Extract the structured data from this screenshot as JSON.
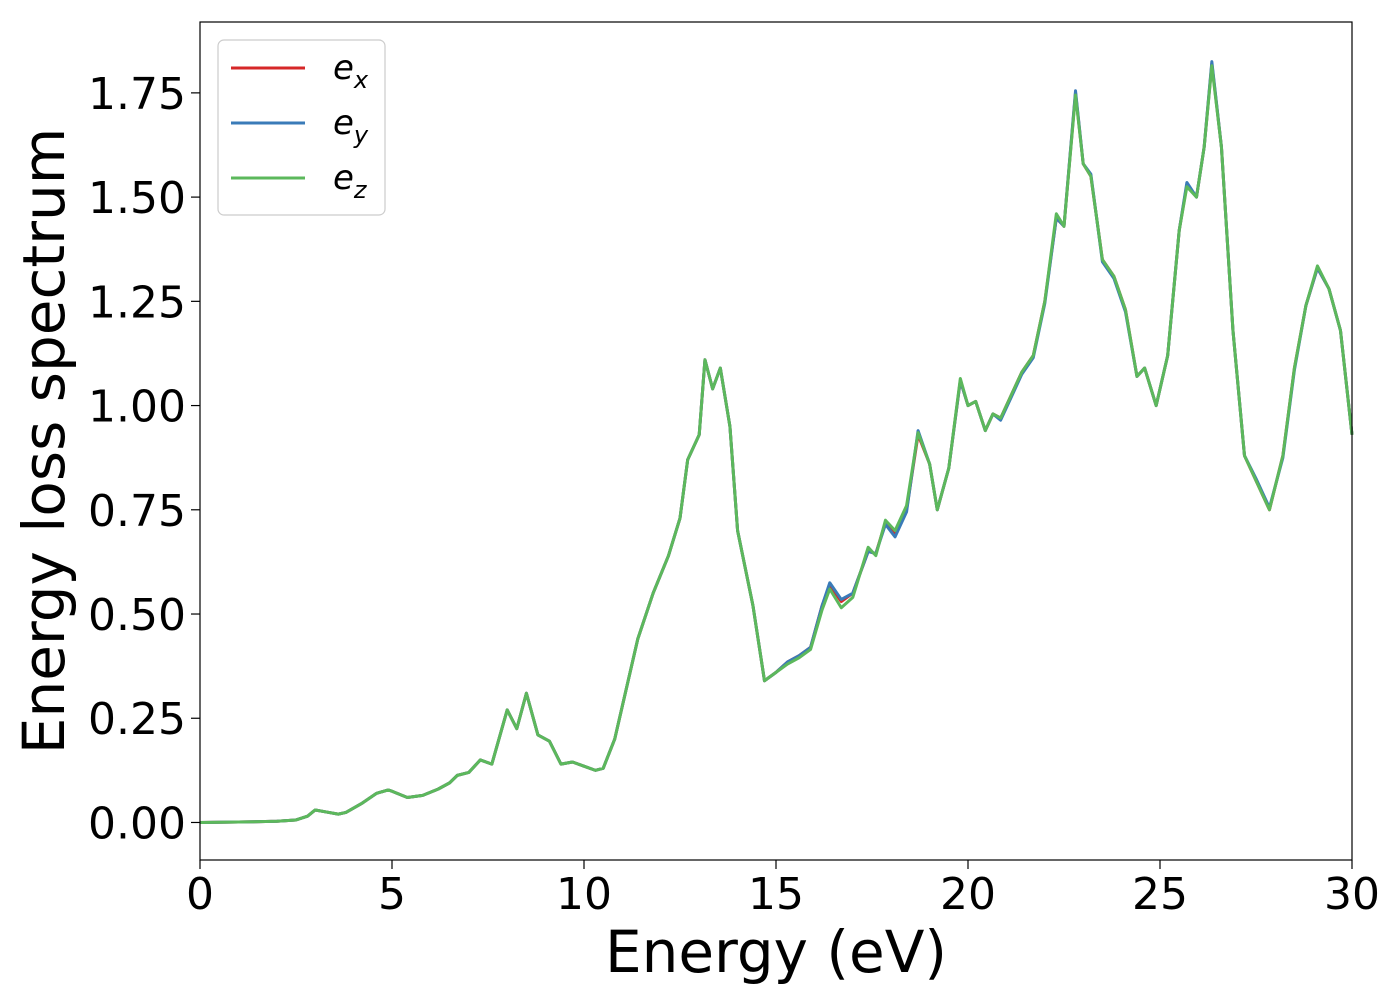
{
  "chart_data": {
    "type": "line",
    "title": "",
    "xlabel": "Energy (eV)",
    "ylabel": "Energy loss spectrum",
    "xlim": [
      0,
      30
    ],
    "ylim": [
      -0.09,
      1.92
    ],
    "xticks": [
      0,
      5,
      10,
      15,
      20,
      25,
      30
    ],
    "yticks": [
      0.0,
      0.25,
      0.5,
      0.75,
      1.0,
      1.25,
      1.5,
      1.75
    ],
    "xtick_labels": [
      "0",
      "5",
      "10",
      "15",
      "20",
      "25",
      "30"
    ],
    "ytick_labels": [
      "0.00",
      "0.25",
      "0.50",
      "0.75",
      "1.00",
      "1.25",
      "1.50",
      "1.75"
    ],
    "grid": false,
    "legend_position": "top-left",
    "colors": {
      "e_x": "#d62728",
      "e_y": "#3a7bb8",
      "e_z": "#5cb85c"
    },
    "x": [
      0,
      1,
      2,
      2.5,
      2.8,
      3.0,
      3.3,
      3.6,
      3.8,
      4.2,
      4.6,
      4.9,
      5.0,
      5.4,
      5.8,
      6.2,
      6.5,
      6.7,
      7.0,
      7.3,
      7.6,
      8.0,
      8.25,
      8.5,
      8.8,
      9.1,
      9.4,
      9.7,
      10.0,
      10.3,
      10.5,
      10.8,
      11.1,
      11.4,
      11.8,
      12.2,
      12.5,
      12.7,
      13.0,
      13.15,
      13.35,
      13.55,
      13.8,
      14.0,
      14.4,
      14.7,
      15.0,
      15.3,
      15.6,
      15.9,
      16.2,
      16.4,
      16.7,
      17.0,
      17.2,
      17.4,
      17.6,
      17.85,
      18.1,
      18.4,
      18.7,
      19.0,
      19.2,
      19.5,
      19.8,
      20.0,
      20.2,
      20.45,
      20.65,
      20.85,
      21.1,
      21.4,
      21.7,
      22.0,
      22.3,
      22.5,
      22.8,
      23.0,
      23.2,
      23.5,
      23.8,
      24.1,
      24.4,
      24.6,
      24.9,
      25.2,
      25.5,
      25.7,
      25.95,
      26.15,
      26.35,
      26.6,
      26.9,
      27.2,
      27.5,
      27.85,
      28.2,
      28.5,
      28.8,
      29.1,
      29.4,
      29.7,
      30.0
    ],
    "series": [
      {
        "name": "e_x",
        "values": [
          0.0,
          0.001,
          0.003,
          0.006,
          0.015,
          0.03,
          0.025,
          0.02,
          0.024,
          0.045,
          0.07,
          0.078,
          0.075,
          0.06,
          0.065,
          0.08,
          0.095,
          0.113,
          0.12,
          0.15,
          0.14,
          0.27,
          0.225,
          0.31,
          0.21,
          0.195,
          0.14,
          0.145,
          0.135,
          0.125,
          0.13,
          0.2,
          0.32,
          0.44,
          0.55,
          0.64,
          0.73,
          0.87,
          0.93,
          1.11,
          1.04,
          1.09,
          0.95,
          0.7,
          0.52,
          0.34,
          0.36,
          0.385,
          0.4,
          0.42,
          0.52,
          0.57,
          0.53,
          0.55,
          0.6,
          0.65,
          0.645,
          0.72,
          0.69,
          0.75,
          0.93,
          0.86,
          0.75,
          0.85,
          1.06,
          1.0,
          1.01,
          0.94,
          0.98,
          0.97,
          1.02,
          1.08,
          1.12,
          1.25,
          1.45,
          1.43,
          1.75,
          1.58,
          1.55,
          1.35,
          1.31,
          1.23,
          1.07,
          1.09,
          1.0,
          1.12,
          1.42,
          1.53,
          1.5,
          1.62,
          1.82,
          1.62,
          1.18,
          0.88,
          0.82,
          0.75,
          0.88,
          1.09,
          1.24,
          1.33,
          1.28,
          1.18,
          0.93
        ]
      },
      {
        "name": "e_y",
        "values": [
          0.0,
          0.001,
          0.003,
          0.006,
          0.015,
          0.03,
          0.025,
          0.02,
          0.024,
          0.045,
          0.07,
          0.078,
          0.075,
          0.06,
          0.065,
          0.08,
          0.095,
          0.113,
          0.12,
          0.15,
          0.14,
          0.27,
          0.225,
          0.31,
          0.21,
          0.195,
          0.14,
          0.145,
          0.135,
          0.125,
          0.13,
          0.2,
          0.32,
          0.44,
          0.55,
          0.64,
          0.73,
          0.87,
          0.93,
          1.11,
          1.04,
          1.09,
          0.95,
          0.7,
          0.52,
          0.34,
          0.36,
          0.385,
          0.4,
          0.42,
          0.52,
          0.575,
          0.535,
          0.55,
          0.6,
          0.65,
          0.645,
          0.715,
          0.685,
          0.745,
          0.94,
          0.86,
          0.75,
          0.85,
          1.06,
          1.0,
          1.01,
          0.94,
          0.98,
          0.965,
          1.015,
          1.075,
          1.115,
          1.245,
          1.45,
          1.43,
          1.755,
          1.58,
          1.555,
          1.345,
          1.305,
          1.225,
          1.07,
          1.09,
          1.0,
          1.12,
          1.42,
          1.535,
          1.5,
          1.62,
          1.825,
          1.62,
          1.18,
          0.88,
          0.825,
          0.755,
          0.875,
          1.085,
          1.24,
          1.33,
          1.28,
          1.18,
          0.93
        ]
      },
      {
        "name": "e_z",
        "values": [
          0.0,
          0.001,
          0.003,
          0.006,
          0.015,
          0.03,
          0.025,
          0.02,
          0.024,
          0.045,
          0.07,
          0.078,
          0.075,
          0.06,
          0.065,
          0.08,
          0.095,
          0.113,
          0.12,
          0.15,
          0.14,
          0.27,
          0.225,
          0.31,
          0.21,
          0.195,
          0.14,
          0.145,
          0.135,
          0.125,
          0.13,
          0.2,
          0.32,
          0.44,
          0.55,
          0.64,
          0.73,
          0.87,
          0.93,
          1.11,
          1.04,
          1.09,
          0.95,
          0.7,
          0.52,
          0.34,
          0.36,
          0.38,
          0.395,
          0.415,
          0.51,
          0.56,
          0.515,
          0.54,
          0.6,
          0.66,
          0.64,
          0.725,
          0.7,
          0.76,
          0.935,
          0.86,
          0.75,
          0.85,
          1.065,
          1.0,
          1.01,
          0.94,
          0.98,
          0.97,
          1.02,
          1.08,
          1.12,
          1.25,
          1.46,
          1.43,
          1.745,
          1.58,
          1.55,
          1.35,
          1.31,
          1.23,
          1.07,
          1.09,
          1.0,
          1.12,
          1.42,
          1.525,
          1.5,
          1.62,
          1.815,
          1.62,
          1.18,
          0.88,
          0.82,
          0.75,
          0.88,
          1.09,
          1.24,
          1.335,
          1.28,
          1.18,
          0.93
        ]
      }
    ],
    "legend": [
      {
        "key": "e_x",
        "base": "e",
        "sub": "x"
      },
      {
        "key": "e_y",
        "base": "e",
        "sub": "y"
      },
      {
        "key": "e_z",
        "base": "e",
        "sub": "z"
      }
    ]
  }
}
